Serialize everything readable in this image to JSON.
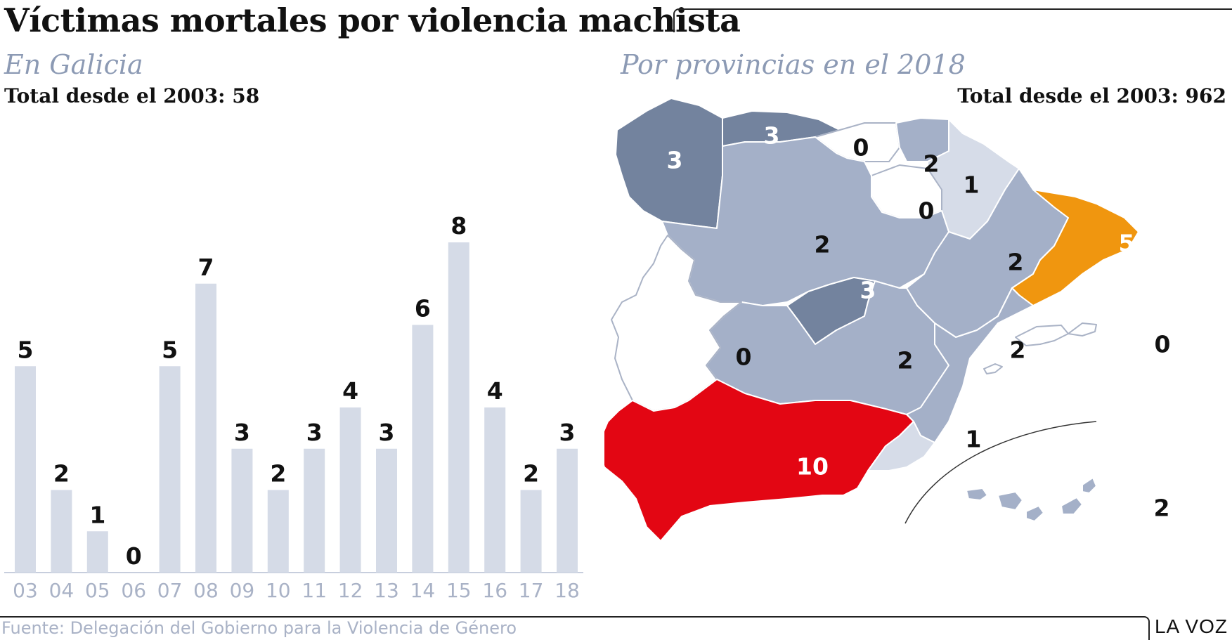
{
  "header": {
    "title": "Víctimas mortales por violencia machista"
  },
  "left_panel": {
    "subtitle": "En Galicia",
    "total": "Total desde el 2003: 58"
  },
  "right_panel": {
    "subtitle": "Por provincias en el 2018",
    "total": "Total desde el 2003: 962"
  },
  "footer": {
    "source": "Fuente: Delegación del Gobierno para la Violencia de Género",
    "brand": "LA VOZ"
  },
  "chart_data": [
    {
      "type": "bar",
      "categories": [
        "03",
        "04",
        "05",
        "06",
        "07",
        "08",
        "09",
        "10",
        "11",
        "12",
        "13",
        "14",
        "15",
        "16",
        "17",
        "18"
      ],
      "values": [
        5,
        2,
        1,
        0,
        5,
        7,
        3,
        2,
        3,
        4,
        3,
        6,
        8,
        4,
        2,
        3
      ],
      "ylim": [
        0,
        8
      ],
      "grid": false,
      "colors": {
        "bar": "#d5dbe7",
        "axis_label": "#a9b2c6",
        "value_label": "#111111"
      }
    },
    {
      "type": "choropleth",
      "regions": [
        {
          "name": "galicia",
          "value": 3
        },
        {
          "name": "asturias",
          "value": 3
        },
        {
          "name": "cantabria",
          "value": 0
        },
        {
          "name": "pais-vasco",
          "value": 2
        },
        {
          "name": "navarra",
          "value": 1
        },
        {
          "name": "la-rioja",
          "value": 0
        },
        {
          "name": "castilla-y-leon",
          "value": 2
        },
        {
          "name": "aragon",
          "value": 2
        },
        {
          "name": "cataluna",
          "value": 5
        },
        {
          "name": "madrid",
          "value": 3
        },
        {
          "name": "castilla-la-mancha",
          "value": 2
        },
        {
          "name": "comunidad-valenciana",
          "value": 2
        },
        {
          "name": "extremadura",
          "value": 0
        },
        {
          "name": "andalucia",
          "value": 10
        },
        {
          "name": "murcia",
          "value": 1
        },
        {
          "name": "baleares",
          "value": 0
        },
        {
          "name": "canarias",
          "value": 2
        }
      ],
      "colors": {
        "0": "#ffffff",
        "1": "#d6dce8",
        "2": "#a4b0c8",
        "3": "#73839e",
        "5": "#f0960f",
        "10": "#e30613"
      }
    }
  ]
}
